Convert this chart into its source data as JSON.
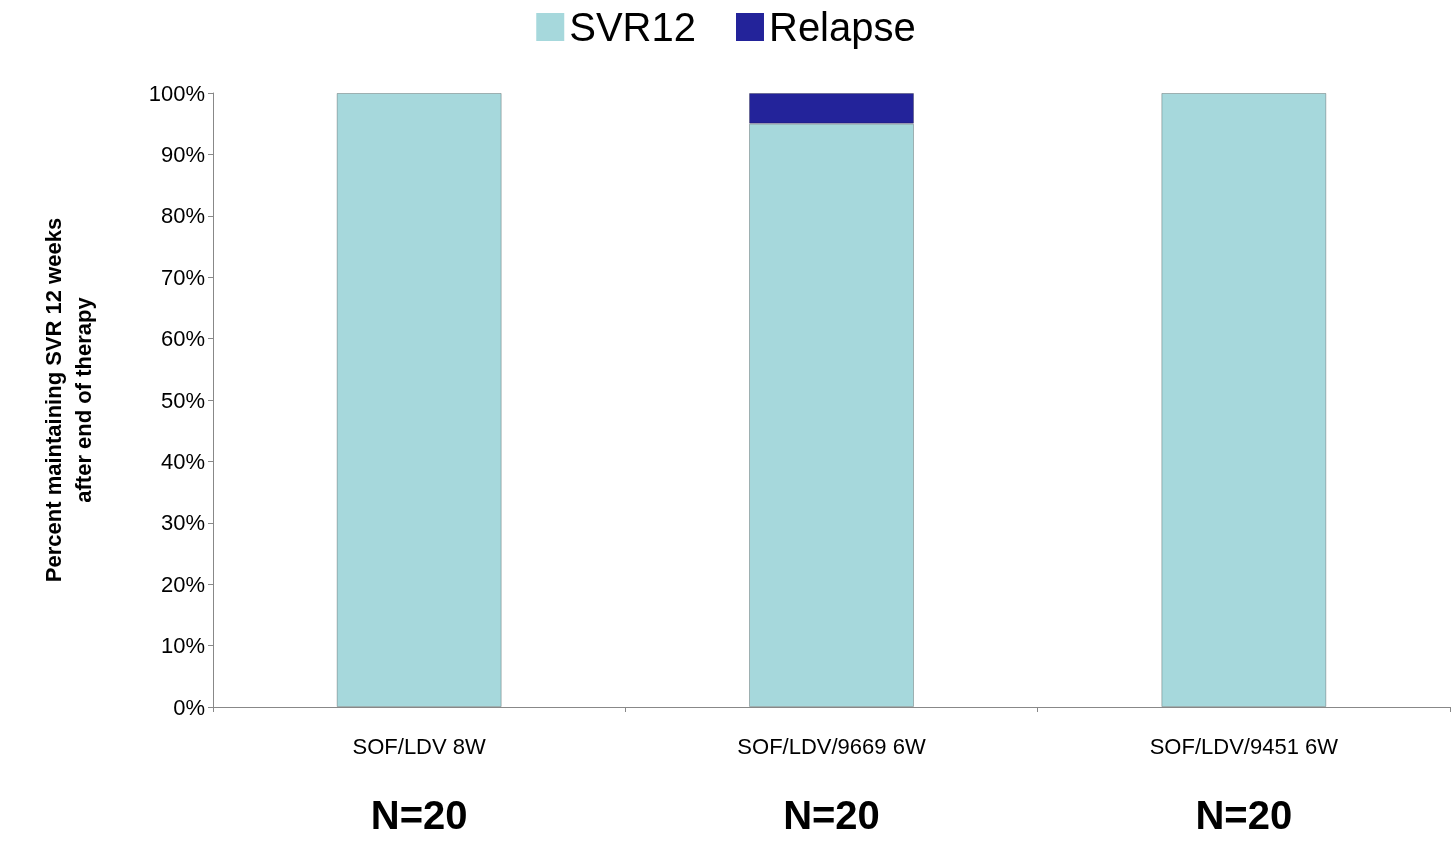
{
  "chart_data": {
    "type": "bar",
    "stacked": true,
    "ylabel": "Percent maintaining SVR 12 weeks\nafter end of therapy",
    "categories": [
      "SOF/LDV 8W",
      "SOF/LDV/9669 6W",
      "SOF/LDV/9451 6W"
    ],
    "series": [
      {
        "name": "SVR12",
        "color": "#a6d8dc",
        "values": [
          100,
          95,
          100
        ]
      },
      {
        "name": "Relapse",
        "color": "#23239a",
        "values": [
          0,
          5,
          0
        ]
      }
    ],
    "ylim": [
      0,
      100
    ],
    "yticks": [
      {
        "value": 0,
        "label": "0%"
      },
      {
        "value": 10,
        "label": "10%"
      },
      {
        "value": 20,
        "label": "20%"
      },
      {
        "value": 30,
        "label": "30%"
      },
      {
        "value": 40,
        "label": "40%"
      },
      {
        "value": 50,
        "label": "50%"
      },
      {
        "value": 60,
        "label": "60%"
      },
      {
        "value": 70,
        "label": "70%"
      },
      {
        "value": 80,
        "label": "80%"
      },
      {
        "value": 90,
        "label": "90%"
      },
      {
        "value": 100,
        "label": "100%"
      }
    ],
    "grid": false,
    "legend": "top",
    "annotations": [
      "N=20",
      "N=20",
      "N=20"
    ]
  }
}
